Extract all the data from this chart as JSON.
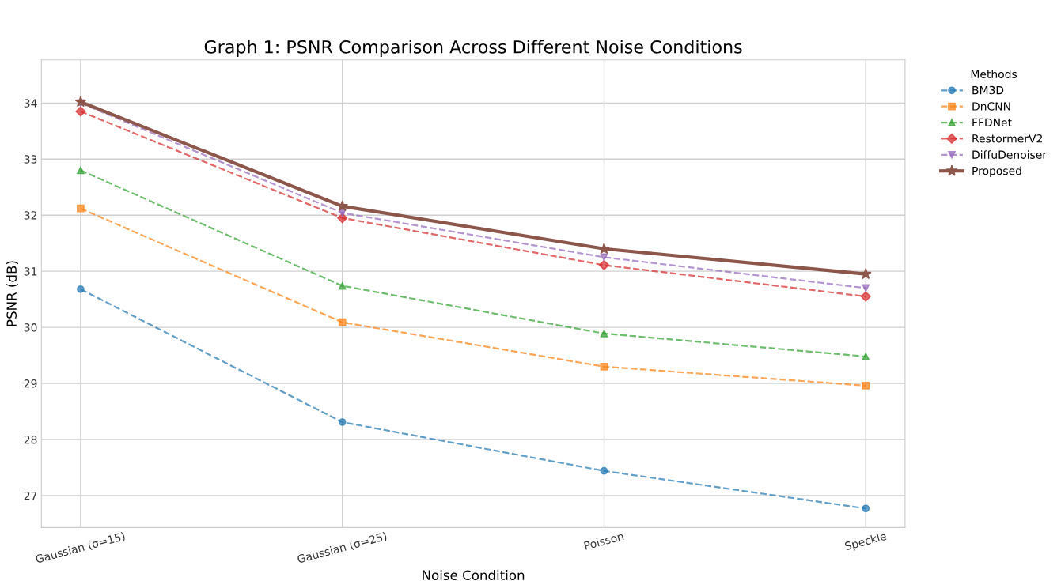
{
  "chart_data": {
    "type": "line",
    "title": "Graph 1: PSNR Comparison Across Different Noise Conditions",
    "xlabel": "Noise Condition",
    "ylabel": "PSNR (dB)",
    "legend_title": "Methods",
    "legend": "top right",
    "grid": true,
    "categories": [
      "Gaussian (σ=15)",
      "Gaussian (σ=25)",
      "Poisson",
      "Speckle"
    ],
    "ylim": [
      26.43,
      34.77
    ],
    "yticks": [
      27,
      28,
      29,
      30,
      31,
      32,
      33,
      34
    ],
    "series": [
      {
        "name": "BM3D",
        "color": "#1f77b4",
        "marker": "circle",
        "line_style": "dashed",
        "values": [
          30.68,
          28.31,
          27.44,
          26.77
        ]
      },
      {
        "name": "DnCNN",
        "color": "#ff7f0e",
        "marker": "square",
        "line_style": "dashed",
        "values": [
          32.12,
          30.09,
          29.3,
          28.96
        ]
      },
      {
        "name": "FFDNet",
        "color": "#2ca02c",
        "marker": "triangle",
        "line_style": "dashed",
        "values": [
          32.8,
          30.74,
          29.89,
          29.48
        ]
      },
      {
        "name": "RestormerV2",
        "color": "#d62728",
        "marker": "diamond",
        "line_style": "dashed",
        "values": [
          33.85,
          31.95,
          31.11,
          30.55
        ]
      },
      {
        "name": "DiffuDenoiser",
        "color": "#9467bd",
        "marker": "triangle_down",
        "line_style": "dashed",
        "values": [
          34.0,
          32.04,
          31.25,
          30.7
        ]
      },
      {
        "name": "Proposed",
        "color": "#8c564b",
        "marker": "star",
        "line_style": "solid",
        "values": [
          34.02,
          32.16,
          31.4,
          30.95
        ]
      }
    ]
  }
}
